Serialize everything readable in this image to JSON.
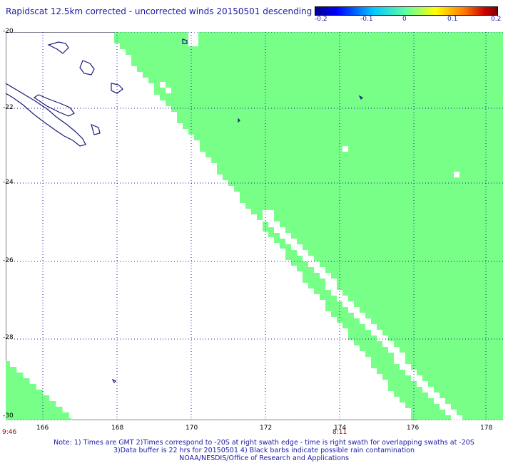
{
  "title": "Rapidscat 12.5km corrected - uncorrected winds 20150501 descending",
  "colorbar": {
    "labels": [
      "-0.2",
      "-0.1",
      "0",
      "0.1",
      "0.2"
    ],
    "colors": [
      "#00008f",
      "#00c8ff",
      "#60ffa0",
      "#ffff00",
      "#d00000",
      "#800000"
    ]
  },
  "map": {
    "lat_labels": [
      "-20",
      "-22",
      "-24",
      "-26",
      "-28",
      "-30"
    ],
    "lon_labels": [
      "166",
      "168",
      "170",
      "172",
      "174",
      "176",
      "178"
    ],
    "swath_color": "#77ff88",
    "coast_color": "#1a1a7a",
    "grid_color": "#1a1aa8"
  },
  "times": {
    "left": "9:46",
    "right": "8:11"
  },
  "notes": {
    "line1": "Note: 1) Times are GMT 2)Times correspond to -20S at right swath edge - time is right swath for overlapping swaths at -20S",
    "line2": "3)Data buffer is 22 hrs for 20150501 4) Black barbs indicate possible rain contamination",
    "line3": "NOAA/NESDIS/Office of Research and Applications"
  }
}
